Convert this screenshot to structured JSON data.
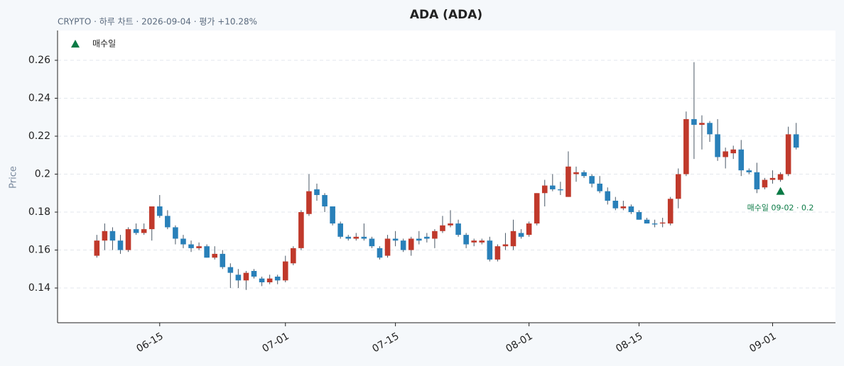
{
  "chart_data": {
    "type": "candlestick",
    "title": "ADA (ADA)",
    "subtitle": "CRYPTO · 하루 차트 · 2026-09-04 · 평가 +10.28%",
    "y_label": "Price",
    "x": [
      "06-07",
      "06-08",
      "06-09",
      "06-10",
      "06-11",
      "06-12",
      "06-13",
      "06-14",
      "06-15",
      "06-16",
      "06-17",
      "06-18",
      "06-19",
      "06-20",
      "06-21",
      "06-22",
      "06-23",
      "06-24",
      "06-25",
      "06-26",
      "06-27",
      "06-28",
      "06-29",
      "06-30",
      "07-01",
      "07-02",
      "07-03",
      "07-04",
      "07-05",
      "07-06",
      "07-07",
      "07-08",
      "07-09",
      "07-10",
      "07-11",
      "07-12",
      "07-13",
      "07-14",
      "07-15",
      "07-16",
      "07-17",
      "07-18",
      "07-19",
      "07-20",
      "07-21",
      "07-22",
      "07-23",
      "07-24",
      "07-25",
      "07-26",
      "07-27",
      "07-28",
      "07-29",
      "07-30",
      "07-31",
      "08-01",
      "08-02",
      "08-03",
      "08-04",
      "08-05",
      "08-06",
      "08-07",
      "08-08",
      "08-09",
      "08-10",
      "08-11",
      "08-12",
      "08-13",
      "08-14",
      "08-15",
      "08-16",
      "08-17",
      "08-18",
      "08-19",
      "08-20",
      "08-21",
      "08-22",
      "08-23",
      "08-24",
      "08-25",
      "08-26",
      "08-27",
      "08-28",
      "08-29",
      "08-30",
      "08-31",
      "09-01",
      "09-02",
      "09-03",
      "09-04"
    ],
    "open": [
      0.157,
      0.165,
      0.17,
      0.165,
      0.16,
      0.171,
      0.169,
      0.171,
      0.183,
      0.178,
      0.172,
      0.166,
      0.163,
      0.161,
      0.162,
      0.156,
      0.158,
      0.151,
      0.147,
      0.144,
      0.149,
      0.145,
      0.143,
      0.146,
      0.144,
      0.153,
      0.161,
      0.179,
      0.192,
      0.189,
      0.183,
      0.174,
      0.167,
      0.166,
      0.167,
      0.166,
      0.161,
      0.157,
      0.166,
      0.165,
      0.16,
      0.166,
      0.167,
      0.166,
      0.17,
      0.173,
      0.174,
      0.168,
      0.164,
      0.164,
      0.165,
      0.155,
      0.162,
      0.162,
      0.169,
      0.168,
      0.174,
      0.19,
      0.194,
      0.192,
      0.188,
      0.2,
      0.201,
      0.199,
      0.195,
      0.191,
      0.186,
      0.182,
      0.183,
      0.18,
      0.176,
      0.174,
      0.174,
      0.174,
      0.187,
      0.2,
      0.229,
      0.226,
      0.227,
      0.221,
      0.209,
      0.211,
      0.213,
      0.202,
      0.201,
      0.193,
      0.197,
      0.197,
      0.2,
      0.221
    ],
    "high": [
      0.168,
      0.174,
      0.172,
      0.168,
      0.172,
      0.174,
      0.174,
      0.183,
      0.189,
      0.181,
      0.173,
      0.168,
      0.165,
      0.164,
      0.163,
      0.162,
      0.16,
      0.153,
      0.15,
      0.149,
      0.15,
      0.146,
      0.147,
      0.147,
      0.157,
      0.162,
      0.181,
      0.2,
      0.195,
      0.19,
      0.183,
      0.175,
      0.168,
      0.169,
      0.174,
      0.167,
      0.162,
      0.168,
      0.17,
      0.166,
      0.167,
      0.17,
      0.169,
      0.171,
      0.178,
      0.181,
      0.176,
      0.169,
      0.166,
      0.166,
      0.167,
      0.163,
      0.169,
      0.176,
      0.171,
      0.175,
      0.19,
      0.197,
      0.2,
      0.196,
      0.212,
      0.204,
      0.202,
      0.2,
      0.199,
      0.193,
      0.188,
      0.186,
      0.184,
      0.181,
      0.177,
      0.176,
      0.177,
      0.188,
      0.203,
      0.233,
      0.259,
      0.231,
      0.228,
      0.229,
      0.214,
      0.215,
      0.218,
      0.203,
      0.206,
      0.198,
      0.202,
      0.201,
      0.225,
      0.227
    ],
    "low": [
      0.156,
      0.16,
      0.16,
      0.158,
      0.159,
      0.168,
      0.168,
      0.165,
      0.177,
      0.171,
      0.163,
      0.161,
      0.159,
      0.16,
      0.156,
      0.155,
      0.15,
      0.14,
      0.14,
      0.139,
      0.145,
      0.141,
      0.142,
      0.142,
      0.143,
      0.152,
      0.16,
      0.178,
      0.186,
      0.18,
      0.173,
      0.166,
      0.165,
      0.165,
      0.165,
      0.161,
      0.155,
      0.156,
      0.162,
      0.159,
      0.157,
      0.163,
      0.164,
      0.161,
      0.169,
      0.172,
      0.167,
      0.161,
      0.162,
      0.163,
      0.154,
      0.154,
      0.16,
      0.16,
      0.166,
      0.167,
      0.173,
      0.183,
      0.191,
      0.189,
      0.188,
      0.196,
      0.198,
      0.193,
      0.19,
      0.184,
      0.181,
      0.181,
      0.179,
      0.176,
      0.174,
      0.172,
      0.172,
      0.173,
      0.182,
      0.199,
      0.208,
      0.213,
      0.217,
      0.207,
      0.203,
      0.208,
      0.199,
      0.2,
      0.19,
      0.192,
      0.195,
      0.196,
      0.199,
      0.213
    ],
    "close": [
      0.165,
      0.17,
      0.165,
      0.16,
      0.171,
      0.169,
      0.171,
      0.183,
      0.178,
      0.172,
      0.166,
      0.163,
      0.161,
      0.162,
      0.156,
      0.158,
      0.151,
      0.148,
      0.144,
      0.148,
      0.146,
      0.143,
      0.145,
      0.144,
      0.154,
      0.161,
      0.18,
      0.191,
      0.189,
      0.183,
      0.174,
      0.167,
      0.166,
      0.167,
      0.166,
      0.162,
      0.156,
      0.166,
      0.165,
      0.16,
      0.166,
      0.165,
      0.166,
      0.17,
      0.173,
      0.174,
      0.168,
      0.163,
      0.165,
      0.165,
      0.155,
      0.162,
      0.163,
      0.17,
      0.167,
      0.174,
      0.19,
      0.194,
      0.192,
      0.1915,
      0.204,
      0.201,
      0.199,
      0.195,
      0.191,
      0.186,
      0.182,
      0.183,
      0.18,
      0.176,
      0.174,
      0.1735,
      0.1745,
      0.187,
      0.2,
      0.229,
      0.226,
      0.227,
      0.221,
      0.209,
      0.212,
      0.213,
      0.202,
      0.201,
      0.192,
      0.197,
      0.198,
      0.2,
      0.221,
      0.214
    ],
    "up_color": "#c0392b",
    "down_color": "#2980b9",
    "markers": [
      {
        "name": "매수일",
        "color": "#0a7a45",
        "x": "09-02",
        "y": 0.191,
        "label": "매수일 09-02 · 0.2"
      }
    ],
    "xlim": [
      "06-02",
      "09-09"
    ],
    "xticks": [
      "06-15",
      "07-01",
      "07-15",
      "08-01",
      "08-15",
      "09-01"
    ],
    "ylim": [
      0.1217,
      0.2757
    ],
    "yticks": [
      0.14,
      0.16,
      0.18,
      0.2,
      0.22,
      0.24,
      0.26
    ],
    "grid": true,
    "legend": "upper left"
  }
}
